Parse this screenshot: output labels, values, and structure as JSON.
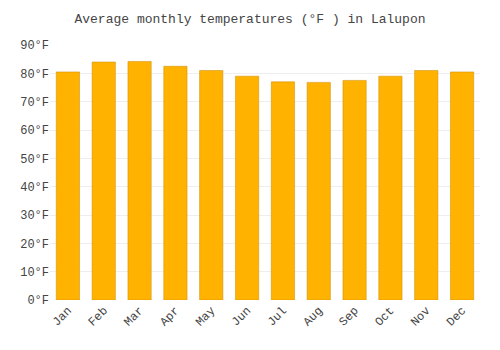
{
  "chart_data": {
    "type": "bar",
    "title": "Average monthly temperatures (°F ) in Lalupon",
    "categories": [
      "Jan",
      "Feb",
      "Mar",
      "Apr",
      "May",
      "Jun",
      "Jul",
      "Aug",
      "Sep",
      "Oct",
      "Nov",
      "Dec"
    ],
    "values": [
      80.5,
      84.0,
      84.2,
      82.5,
      81.0,
      79.0,
      77.0,
      76.8,
      77.5,
      79.0,
      81.0,
      80.5
    ],
    "color": "#FFB300",
    "ylim": [
      0,
      90
    ],
    "yticks": [
      {
        "value": 0,
        "label": "0°F"
      },
      {
        "value": 10,
        "label": "10°F"
      },
      {
        "value": 20,
        "label": "20°F"
      },
      {
        "value": 30,
        "label": "30°F"
      },
      {
        "value": 40,
        "label": "40°F"
      },
      {
        "value": 50,
        "label": "50°F"
      },
      {
        "value": 60,
        "label": "60°F"
      },
      {
        "value": 70,
        "label": "70°F"
      },
      {
        "value": 80,
        "label": "80°F"
      },
      {
        "value": 90,
        "label": "90°F"
      }
    ],
    "grid": true
  }
}
